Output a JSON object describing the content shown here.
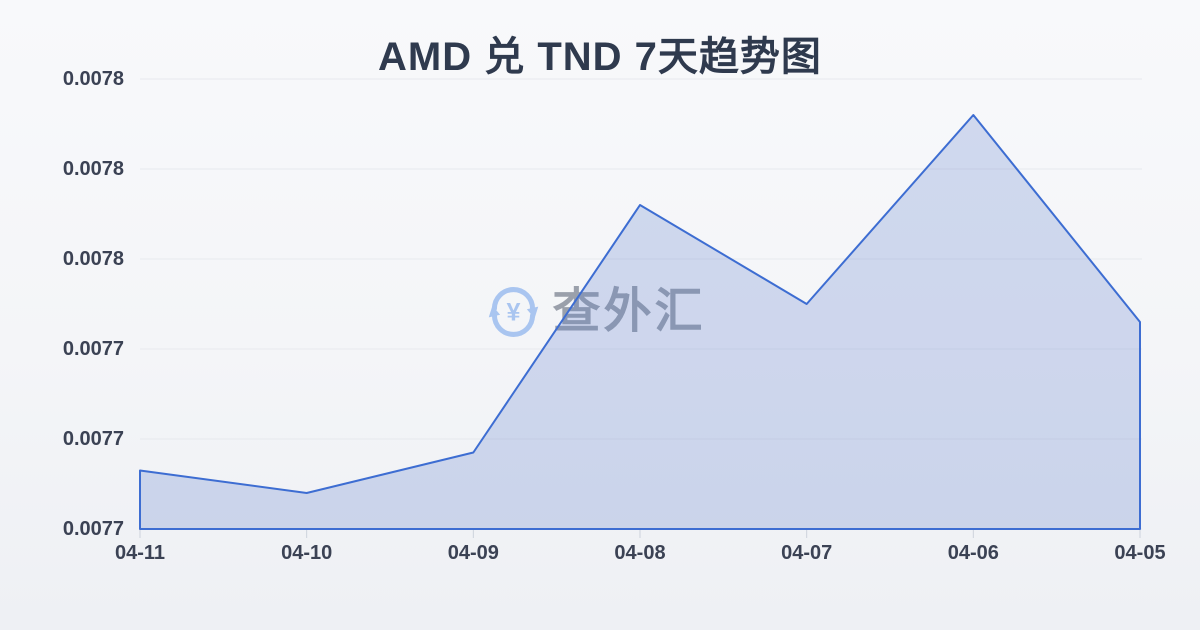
{
  "title": "AMD 兑 TND 7天趋势图",
  "watermark": {
    "text": "查外汇",
    "icon": "currency-exchange-refresh-icon"
  },
  "colors": {
    "line": "#3d6dd2",
    "fill": "rgba(90, 125, 205, 0.25)",
    "grid": "#e7e9ee",
    "tick": "#cdd3dc",
    "axis_text": "#3b4254",
    "title_text": "#2f3a4e",
    "watermark_text": "#9aa0ab",
    "watermark_icon": "#a9c5f0",
    "background_top": "#f8f9fb",
    "background_bottom": "#eef0f4"
  },
  "chart_data": {
    "type": "area",
    "title": "AMD 兑 TND 7天趋势图",
    "categories": [
      "04-11",
      "04-10",
      "04-09",
      "04-08",
      "04-07",
      "04-06",
      "04-05"
    ],
    "values": [
      0.007713,
      0.007708,
      0.007717,
      0.007772,
      0.00775,
      0.007792,
      0.007746
    ],
    "xlabel": "",
    "ylabel": "",
    "ylim": [
      0.0077,
      0.0078
    ],
    "y_tick_labels_top_to_bottom": [
      "0.0078",
      "0.0078",
      "0.0078",
      "0.0077",
      "0.0077",
      "0.0077"
    ],
    "grid": "horizontal",
    "legend": "none",
    "watermark": "查外汇"
  }
}
